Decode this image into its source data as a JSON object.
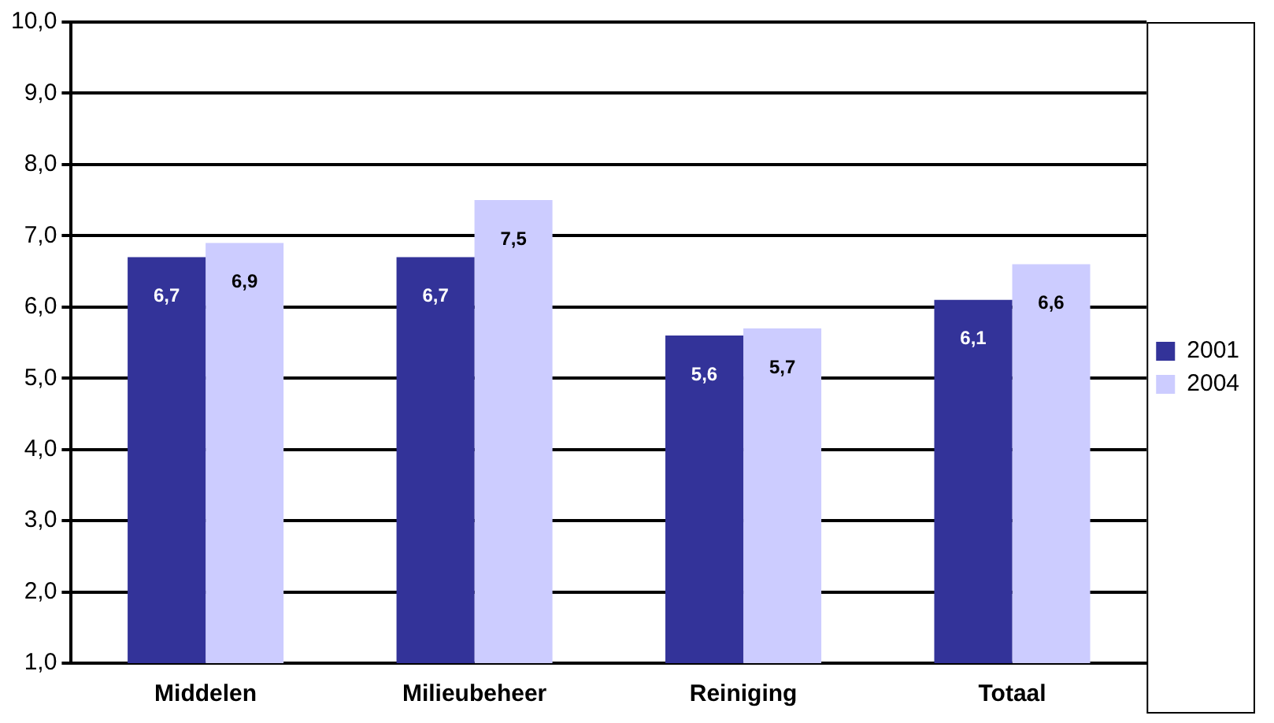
{
  "chart_data": {
    "type": "bar",
    "categories": [
      "Middelen",
      "Milieubeheer",
      "Reiniging",
      "Totaal"
    ],
    "series": [
      {
        "name": "2001",
        "color": "#333399",
        "values": [
          6.7,
          6.7,
          5.6,
          6.1
        ],
        "value_labels": [
          "6,7",
          "6,7",
          "5,6",
          "6,1"
        ]
      },
      {
        "name": "2004",
        "color": "#ccccff",
        "values": [
          6.9,
          7.5,
          5.7,
          6.6
        ],
        "value_labels": [
          "6,9",
          "7,5",
          "5,7",
          "6,6"
        ]
      }
    ],
    "ylim": [
      1,
      10
    ],
    "yticks": [
      {
        "value": 1,
        "label": "1,0"
      },
      {
        "value": 2,
        "label": "2,0"
      },
      {
        "value": 3,
        "label": "3,0"
      },
      {
        "value": 4,
        "label": "4,0"
      },
      {
        "value": 5,
        "label": "5,0"
      },
      {
        "value": 6,
        "label": "6,0"
      },
      {
        "value": 7,
        "label": "7,0"
      },
      {
        "value": 8,
        "label": "8,0"
      },
      {
        "value": 9,
        "label": "9,0"
      },
      {
        "value": 10,
        "label": "10,0"
      }
    ],
    "grid": "y",
    "legend": "right"
  }
}
